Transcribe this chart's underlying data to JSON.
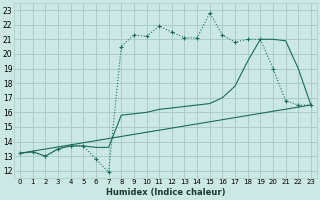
{
  "bg_color": "#cce8e4",
  "grid_color": "#a8ceca",
  "line_color": "#1a6b5a",
  "xlabel": "Humidex (Indice chaleur)",
  "xlim": [
    -0.5,
    23.5
  ],
  "ylim": [
    11.5,
    23.5
  ],
  "xticks": [
    0,
    1,
    2,
    3,
    4,
    5,
    6,
    7,
    8,
    9,
    10,
    11,
    12,
    13,
    14,
    15,
    16,
    17,
    18,
    19,
    20,
    21,
    22,
    23
  ],
  "yticks": [
    12,
    13,
    14,
    15,
    16,
    17,
    18,
    19,
    20,
    21,
    22,
    23
  ],
  "line1_x": [
    0,
    1,
    2,
    3,
    4,
    5,
    6,
    7,
    8,
    9,
    10,
    11,
    12,
    13,
    14,
    15,
    16,
    17,
    18,
    19,
    20,
    21,
    22,
    23
  ],
  "line1_y": [
    13.2,
    13.3,
    13.0,
    13.5,
    13.7,
    13.7,
    12.8,
    11.9,
    20.5,
    21.3,
    21.2,
    21.9,
    21.5,
    21.1,
    21.1,
    22.8,
    21.3,
    20.8,
    21.0,
    21.0,
    19.0,
    16.8,
    16.5,
    16.5
  ],
  "line2_x": [
    0,
    1,
    2,
    3,
    4,
    5,
    6,
    7,
    8,
    9,
    10,
    11,
    12,
    13,
    14,
    15,
    16,
    17,
    18,
    19,
    20,
    21,
    22,
    23
  ],
  "line2_y": [
    13.2,
    13.3,
    13.0,
    13.5,
    13.7,
    13.7,
    13.6,
    13.6,
    15.8,
    15.9,
    16.0,
    16.2,
    16.3,
    16.4,
    16.5,
    16.6,
    17.0,
    17.8,
    19.5,
    21.0,
    21.0,
    20.9,
    19.0,
    16.5
  ],
  "line3_x": [
    0,
    23
  ],
  "line3_y": [
    13.2,
    16.5
  ]
}
